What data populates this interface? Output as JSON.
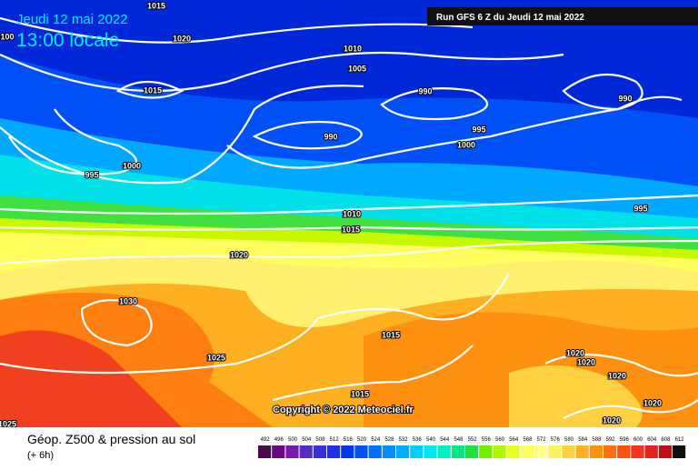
{
  "header": {
    "date": "Jeudi 12 mai 2022",
    "time": "13:00 locale",
    "run": "Run GFS 6 Z du Jeudi 12 mai 2022"
  },
  "copyright": "Copyright © 2022 Meteociel.fr",
  "footer": {
    "title": "Géop. Z500 & pression au sol",
    "subtitle": "(+ 6h)"
  },
  "isobar_labels": [
    "1015",
    "1020",
    "100",
    "1015",
    "1010",
    "1005",
    "990",
    "990",
    "995",
    "1000",
    "995",
    "1000",
    "990",
    "1010",
    "1015",
    "995",
    "1020",
    "1030",
    "1015",
    "1025",
    "1015",
    "1020",
    "1020",
    "1020",
    "1020",
    "1020",
    "1025"
  ],
  "legend": {
    "scale": [
      492,
      496,
      500,
      504,
      508,
      512,
      516,
      520,
      524,
      528,
      532,
      536,
      540,
      544,
      548,
      552,
      556,
      560,
      564,
      568,
      572,
      576,
      580,
      584,
      588,
      592,
      596,
      600,
      604,
      608,
      612
    ],
    "colors": [
      "#4b0a4b",
      "#6a0a80",
      "#7a1aa8",
      "#5a2ac8",
      "#3a30d8",
      "#2030e8",
      "#0038f0",
      "#0050f8",
      "#0070ff",
      "#0090ff",
      "#00b0ff",
      "#00d0ff",
      "#00e8f0",
      "#00f0c0",
      "#00e880",
      "#20e040",
      "#70f000",
      "#b0f800",
      "#e8ff20",
      "#ffff60",
      "#ffff90",
      "#fff060",
      "#ffd040",
      "#ffb020",
      "#ff9010",
      "#ff7010",
      "#ff5010",
      "#ff3020",
      "#e82020",
      "#c01010",
      "#101010"
    ]
  }
}
